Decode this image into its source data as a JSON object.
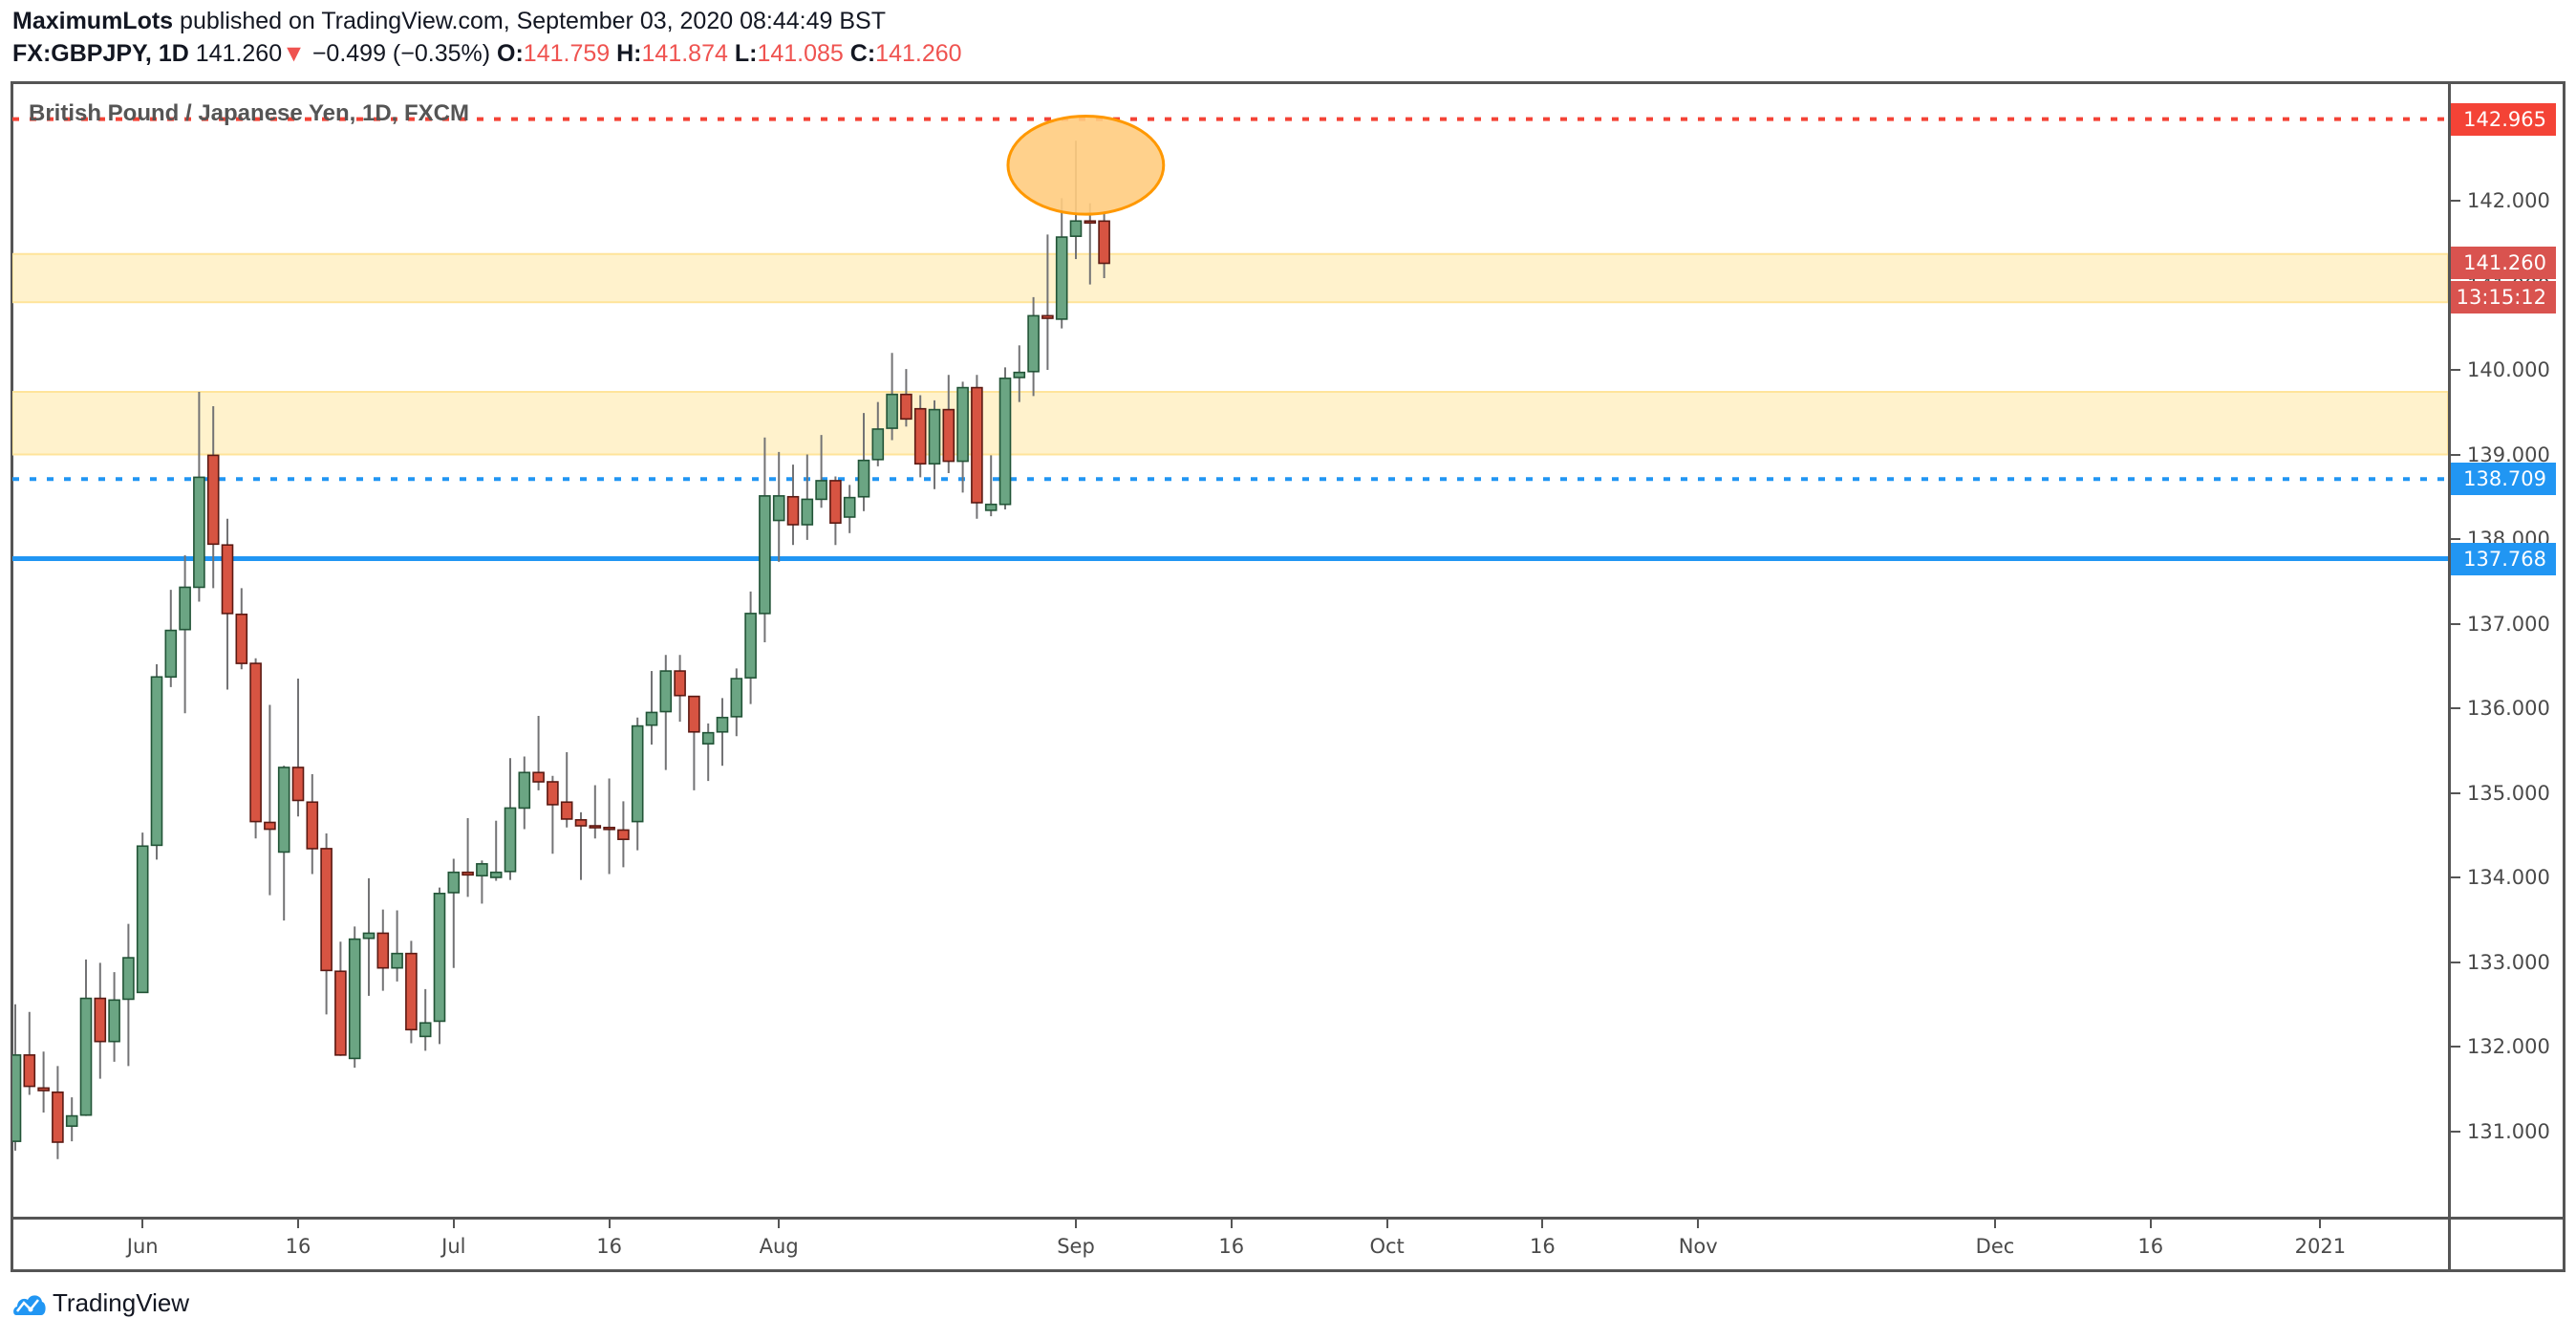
{
  "header": {
    "author": "MaximumLots",
    "published": "published on TradingView.com, September 03, 2020 08:44:49 BST",
    "symbol": "FX:GBPJPY, 1D",
    "last": "141.260",
    "change": "−0.499 (−0.35%)",
    "o_label": "O:",
    "o": "141.759",
    "h_label": "H:",
    "h": "141.874",
    "l_label": "L:",
    "l": "141.085",
    "c_label": "C:",
    "c": "141.260"
  },
  "chart_title": "British Pound / Japanese Yen, 1D, FXCM",
  "footer": {
    "brand": "TradingView"
  },
  "colors": {
    "up": "#6ba583",
    "up_border": "#225437",
    "down": "#d75442",
    "down_border": "#5b1a13",
    "wick": "#737375",
    "zone": "#fff2cc",
    "zone_border": "#ffe49a",
    "red_line": "#f44336",
    "blue_line": "#2196f3",
    "ellipse": "#ffcc80",
    "ellipse_border": "#ff9800",
    "last_price": "#d9534f"
  },
  "chart_data": {
    "type": "candlestick",
    "symbol": "GBPJPY",
    "interval": "1D",
    "x_unit": "bars relative to Sep 1 2020",
    "first_bar": -75,
    "ylim": [
      130.2,
      143.4
    ],
    "price_ticks": [
      "131.000",
      "132.000",
      "133.000",
      "134.000",
      "135.000",
      "136.000",
      "137.000",
      "138.000",
      "139.000",
      "140.000",
      "141.000",
      "142.000"
    ],
    "time_labels": [
      {
        "label": "Jun",
        "bar": -66
      },
      {
        "label": "16",
        "bar": -55
      },
      {
        "label": "Jul",
        "bar": -44
      },
      {
        "label": "16",
        "bar": -33
      },
      {
        "label": "Aug",
        "bar": -21
      },
      {
        "label": "Sep",
        "bar": 0
      },
      {
        "label": "16",
        "bar": 11
      },
      {
        "label": "Oct",
        "bar": 22
      },
      {
        "label": "16",
        "bar": 33
      },
      {
        "label": "Nov",
        "bar": 44
      },
      {
        "label": "Dec",
        "bar": 65
      },
      {
        "label": "16",
        "bar": 76
      },
      {
        "label": "2021",
        "bar": 88
      }
    ],
    "ohlc": [
      [
        130.88,
        132.5,
        130.77,
        131.9
      ],
      [
        131.9,
        132.41,
        131.43,
        131.53
      ],
      [
        131.51,
        131.94,
        131.22,
        131.48
      ],
      [
        131.46,
        131.77,
        130.67,
        130.87
      ],
      [
        131.06,
        131.4,
        130.88,
        131.18
      ],
      [
        131.19,
        133.03,
        131.18,
        132.57
      ],
      [
        132.57,
        132.99,
        131.62,
        132.06
      ],
      [
        132.06,
        132.88,
        131.82,
        132.55
      ],
      [
        132.56,
        133.45,
        131.77,
        133.05
      ],
      [
        132.64,
        134.53,
        132.64,
        134.37
      ],
      [
        134.38,
        136.52,
        134.21,
        136.37
      ],
      [
        136.37,
        137.4,
        136.25,
        136.92
      ],
      [
        136.93,
        137.81,
        135.94,
        137.43
      ],
      [
        137.43,
        139.74,
        137.26,
        138.73
      ],
      [
        138.99,
        139.57,
        137.42,
        137.94
      ],
      [
        137.93,
        138.24,
        136.22,
        137.12
      ],
      [
        137.11,
        137.42,
        136.46,
        136.53
      ],
      [
        136.53,
        136.59,
        134.46,
        134.66
      ],
      [
        134.65,
        136.04,
        133.79,
        134.57
      ],
      [
        134.3,
        135.32,
        133.49,
        135.3
      ],
      [
        135.3,
        136.35,
        134.72,
        134.91
      ],
      [
        134.89,
        135.22,
        134.04,
        134.34
      ],
      [
        134.34,
        134.52,
        132.38,
        132.9
      ],
      [
        132.89,
        133.24,
        131.89,
        131.9
      ],
      [
        131.86,
        133.42,
        131.75,
        133.27
      ],
      [
        133.28,
        133.99,
        132.6,
        133.34
      ],
      [
        133.34,
        133.62,
        132.66,
        132.93
      ],
      [
        132.93,
        133.61,
        132.77,
        133.1
      ],
      [
        133.1,
        133.25,
        132.04,
        132.2
      ],
      [
        132.12,
        132.68,
        131.95,
        132.28
      ],
      [
        132.3,
        133.88,
        132.03,
        133.81
      ],
      [
        133.82,
        134.22,
        132.93,
        134.06
      ],
      [
        134.06,
        134.7,
        133.77,
        134.03
      ],
      [
        134.02,
        134.2,
        133.69,
        134.16
      ],
      [
        134.0,
        134.67,
        133.96,
        134.06
      ],
      [
        134.07,
        135.41,
        133.97,
        134.82
      ],
      [
        134.82,
        135.43,
        134.57,
        135.24
      ],
      [
        135.24,
        135.91,
        135.03,
        135.13
      ],
      [
        135.13,
        135.2,
        134.28,
        134.86
      ],
      [
        134.89,
        135.48,
        134.59,
        134.69
      ],
      [
        134.68,
        134.77,
        133.97,
        134.61
      ],
      [
        134.61,
        135.09,
        134.46,
        134.6
      ],
      [
        134.59,
        135.17,
        134.04,
        134.57
      ],
      [
        134.56,
        134.9,
        134.12,
        134.45
      ],
      [
        134.66,
        135.89,
        134.32,
        135.79
      ],
      [
        135.8,
        136.44,
        135.57,
        135.95
      ],
      [
        135.96,
        136.63,
        135.27,
        136.44
      ],
      [
        136.44,
        136.63,
        135.84,
        136.15
      ],
      [
        136.14,
        136.14,
        135.03,
        135.72
      ],
      [
        135.58,
        135.82,
        135.14,
        135.71
      ],
      [
        135.72,
        136.12,
        135.32,
        135.89
      ],
      [
        135.9,
        136.47,
        135.67,
        136.35
      ],
      [
        136.36,
        137.38,
        136.05,
        137.12
      ],
      [
        137.12,
        139.2,
        136.78,
        138.51
      ],
      [
        138.22,
        139.03,
        137.73,
        138.51
      ],
      [
        138.5,
        138.88,
        137.93,
        138.17
      ],
      [
        138.17,
        139.0,
        137.99,
        138.47
      ],
      [
        138.47,
        139.23,
        138.37,
        138.69
      ],
      [
        138.69,
        138.74,
        137.93,
        138.19
      ],
      [
        138.26,
        138.64,
        138.07,
        138.49
      ],
      [
        138.5,
        139.49,
        138.33,
        138.93
      ],
      [
        138.94,
        139.62,
        138.86,
        139.3
      ],
      [
        139.31,
        140.2,
        139.17,
        139.71
      ],
      [
        139.71,
        140.01,
        139.33,
        139.42
      ],
      [
        139.54,
        139.7,
        138.73,
        138.89
      ],
      [
        138.89,
        139.64,
        138.59,
        139.53
      ],
      [
        139.53,
        139.94,
        138.78,
        138.92
      ],
      [
        138.92,
        139.86,
        138.55,
        139.79
      ],
      [
        139.79,
        139.94,
        138.24,
        138.43
      ],
      [
        138.34,
        138.99,
        138.27,
        138.41
      ],
      [
        138.41,
        140.03,
        138.35,
        139.9
      ],
      [
        139.91,
        140.29,
        139.62,
        139.97
      ],
      [
        139.98,
        140.86,
        139.69,
        140.64
      ],
      [
        140.64,
        141.6,
        140.0,
        140.61
      ],
      [
        140.6,
        142.03,
        140.49,
        141.57
      ],
      [
        141.58,
        142.71,
        141.31,
        141.76
      ],
      [
        141.76,
        141.97,
        141.01,
        141.75
      ],
      [
        141.759,
        141.874,
        141.085,
        141.26
      ]
    ],
    "zones": [
      {
        "top": 141.37,
        "bottom": 140.8
      },
      {
        "top": 139.74,
        "bottom": 139.0
      }
    ],
    "hlines": [
      {
        "price": 142.965,
        "label": "142.965",
        "style": "dotted",
        "color": "#f44336"
      },
      {
        "price": 138.709,
        "label": "138.709",
        "style": "dotted",
        "color": "#2196f3"
      },
      {
        "price": 137.768,
        "label": "137.768",
        "style": "solid",
        "color": "#2196f3"
      }
    ],
    "ellipse": {
      "center_bar": 0.7,
      "center_price": 142.42,
      "radius_bars": 5.5,
      "radius_price": 0.58
    },
    "last_price": {
      "label": "141.260",
      "countdown": "13:15:12"
    }
  }
}
